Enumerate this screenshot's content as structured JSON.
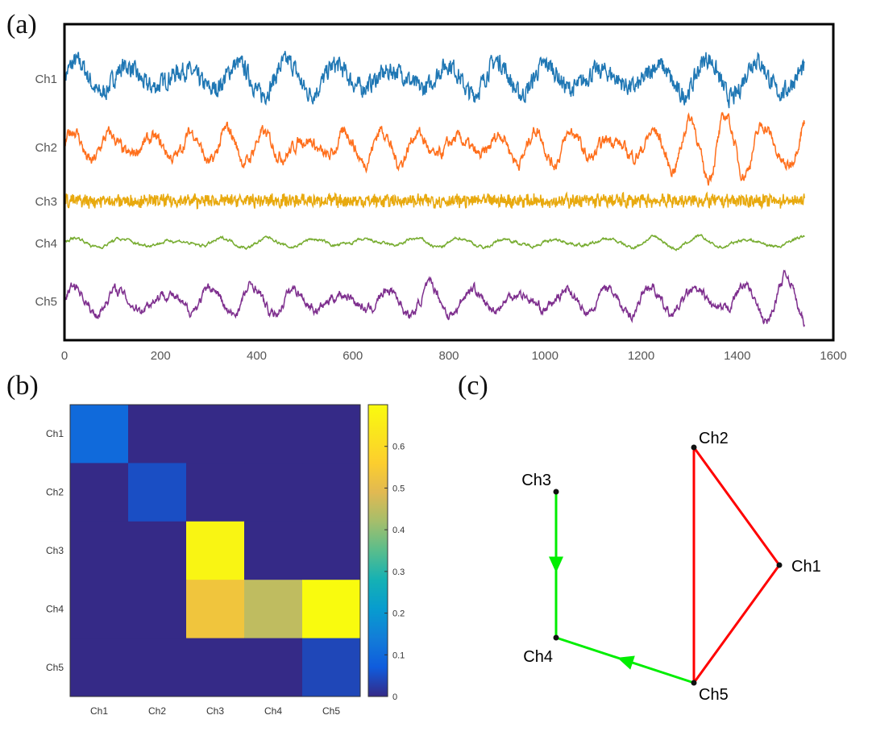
{
  "panel_labels": {
    "a": "(a)",
    "b": "(b)",
    "c": "(c)"
  },
  "chart_data": [
    {
      "type": "line",
      "panel": "a",
      "xlim": [
        0,
        1600
      ],
      "x_ticks": [
        "0",
        "200",
        "400",
        "600",
        "800",
        "1000",
        "1200",
        "1400",
        "1600"
      ],
      "x_range": [
        0,
        1540
      ],
      "series": [
        {
          "name": "Ch1",
          "color": "#1f77b4",
          "amplitude": 0.9,
          "noise": 0.6,
          "freq": 0.055,
          "growth": 0.3
        },
        {
          "name": "Ch2",
          "color": "#ff6f1c",
          "amplitude": 0.8,
          "noise": 0.3,
          "freq": 0.075,
          "growth": 1.1
        },
        {
          "name": "Ch3",
          "color": "#e8a90e",
          "amplitude": 0.3,
          "noise": 1.0,
          "freq": 0.45,
          "growth": 0.0
        },
        {
          "name": "Ch4",
          "color": "#77ac30",
          "amplitude": 0.5,
          "noise": 0.15,
          "freq": 0.06,
          "growth": 0.7
        },
        {
          "name": "Ch5",
          "color": "#7e2f8e",
          "amplitude": 0.8,
          "noise": 0.25,
          "freq": 0.065,
          "growth": 0.8
        }
      ]
    },
    {
      "type": "heatmap",
      "panel": "b",
      "rows": [
        "Ch1",
        "Ch2",
        "Ch3",
        "Ch4",
        "Ch5"
      ],
      "cols": [
        "Ch1",
        "Ch2",
        "Ch3",
        "Ch4",
        "Ch5"
      ],
      "values": [
        [
          0.1,
          0.0,
          0.0,
          0.0,
          0.0
        ],
        [
          0.0,
          0.05,
          0.0,
          0.0,
          0.0
        ],
        [
          0.0,
          0.0,
          0.68,
          0.0,
          0.0
        ],
        [
          0.0,
          0.0,
          0.53,
          0.45,
          0.7
        ],
        [
          0.0,
          0.0,
          0.0,
          0.0,
          0.04
        ]
      ],
      "colorbar": {
        "min": 0,
        "max": 0.7,
        "ticks": [
          "0",
          "0.1",
          "0.2",
          "0.3",
          "0.4",
          "0.5",
          "0.6"
        ]
      }
    },
    {
      "type": "network",
      "panel": "c",
      "nodes": [
        {
          "id": "Ch1",
          "label": "Ch1"
        },
        {
          "id": "Ch2",
          "label": "Ch2"
        },
        {
          "id": "Ch3",
          "label": "Ch3"
        },
        {
          "id": "Ch4",
          "label": "Ch4"
        },
        {
          "id": "Ch5",
          "label": "Ch5"
        }
      ],
      "edges": [
        {
          "from": "Ch2",
          "to": "Ch1",
          "color": "#ff0000",
          "directed": false
        },
        {
          "from": "Ch1",
          "to": "Ch5",
          "color": "#ff0000",
          "directed": false
        },
        {
          "from": "Ch2",
          "to": "Ch5",
          "color": "#ff0000",
          "directed": false
        },
        {
          "from": "Ch3",
          "to": "Ch4",
          "color": "#00ee00",
          "directed": true
        },
        {
          "from": "Ch5",
          "to": "Ch4",
          "color": "#00ee00",
          "directed": true
        }
      ]
    }
  ]
}
